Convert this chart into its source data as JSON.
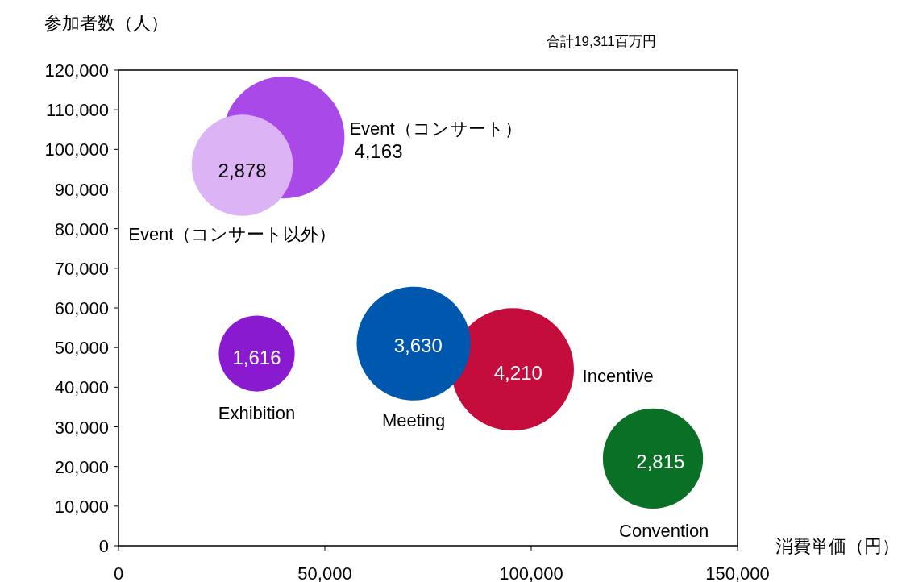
{
  "chart_data": {
    "type": "bubble",
    "xlabel": "消費単価（円）",
    "ylabel": "参加者数（人）",
    "annotations": [
      "合計19,311百万円"
    ],
    "xlim": [
      0,
      150000
    ],
    "ylim": [
      0,
      120000
    ],
    "xticks": [
      0,
      {
        "value": 50000,
        "label": "50,000"
      },
      {
        "value": 100000,
        "label": "100,000"
      },
      {
        "value": 150000,
        "label": "150,000"
      }
    ],
    "yticks": [
      0,
      {
        "value": 10000,
        "label": "10,000"
      },
      {
        "value": 20000,
        "label": "20,000"
      },
      {
        "value": 30000,
        "label": "30,000"
      },
      {
        "value": 40000,
        "label": "40,000"
      },
      {
        "value": 50000,
        "label": "50,000"
      },
      {
        "value": 60000,
        "label": "60,000"
      },
      {
        "value": 70000,
        "label": "70,000"
      },
      {
        "value": 80000,
        "label": "80,000"
      },
      {
        "value": 90000,
        "label": "90,000"
      },
      {
        "value": 100000,
        "label": "100,000"
      },
      {
        "value": 110000,
        "label": "110,000"
      },
      {
        "value": 120000,
        "label": "120,000"
      }
    ],
    "grid": false,
    "series": [
      {
        "name": "Event（コンサート）",
        "color": "#a94ae8",
        "x": [
          40000
        ],
        "values": [
          103000
        ],
        "sizes": [
          4163
        ],
        "value_labels": [
          "4,163"
        ]
      },
      {
        "name": "Event（コンサート以外）",
        "color": "#dcb4f5",
        "x": [
          30000
        ],
        "values": [
          96000
        ],
        "sizes": [
          2878
        ],
        "value_labels": [
          "2,878"
        ]
      },
      {
        "name": "Exhibition",
        "color": "#8a1ad0",
        "x": [
          33500
        ],
        "values": [
          48500
        ],
        "sizes": [
          1616
        ],
        "value_labels": [
          "1,616"
        ]
      },
      {
        "name": "Incentive",
        "color": "#c40d3c",
        "x": [
          95500
        ],
        "values": [
          44500
        ],
        "sizes": [
          4210
        ],
        "value_labels": [
          "4,210"
        ]
      },
      {
        "name": "Meeting",
        "color": "#0058ae",
        "x": [
          71500
        ],
        "values": [
          51000
        ],
        "sizes": [
          3630
        ],
        "value_labels": [
          "3,630"
        ]
      },
      {
        "name": "Convention",
        "color": "#0a7025",
        "x": [
          129500
        ],
        "values": [
          22000
        ],
        "sizes": [
          2815
        ],
        "value_labels": [
          "2,815"
        ]
      }
    ]
  }
}
